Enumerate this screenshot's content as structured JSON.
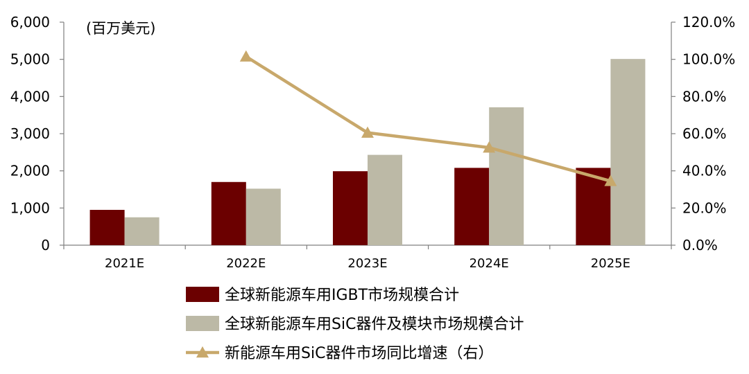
{
  "chart_data": {
    "type": "bar",
    "unit_label": "(百万美元)",
    "categories": [
      "2021E",
      "2022E",
      "2023E",
      "2024E",
      "2025E"
    ],
    "y_left": {
      "ylim": [
        0,
        6000
      ],
      "ticks": [
        0,
        1000,
        2000,
        3000,
        4000,
        5000,
        6000
      ],
      "tick_labels": [
        "0",
        "1,000",
        "2,000",
        "3,000",
        "4,000",
        "5,000",
        "6,000"
      ]
    },
    "y_right": {
      "ylim": [
        0,
        120
      ],
      "ticks": [
        0,
        20,
        40,
        60,
        80,
        100,
        120
      ],
      "tick_labels": [
        "0.0%",
        "20.0%",
        "40.0%",
        "60.0%",
        "80.0%",
        "100.0%",
        "120.0%"
      ]
    },
    "series": [
      {
        "name": "全球新能源车用IGBT市场规模合计",
        "kind": "bar",
        "axis": "left",
        "color": "#6b0000",
        "values": [
          950,
          1700,
          1990,
          2080,
          2080
        ]
      },
      {
        "name": "全球新能源车用SiC器件及模块市场规模合计",
        "kind": "bar",
        "axis": "left",
        "color": "#bcb9a6",
        "values": [
          750,
          1520,
          2430,
          3710,
          5010
        ]
      },
      {
        "name": "新能源车用SiC器件市场同比增速（右）",
        "kind": "line",
        "axis": "right",
        "color": "#c8a86b",
        "marker": "triangle",
        "values": [
          null,
          101.5,
          60.5,
          52.5,
          34.5
        ]
      }
    ],
    "grid": false,
    "legend_position": "bottom"
  }
}
